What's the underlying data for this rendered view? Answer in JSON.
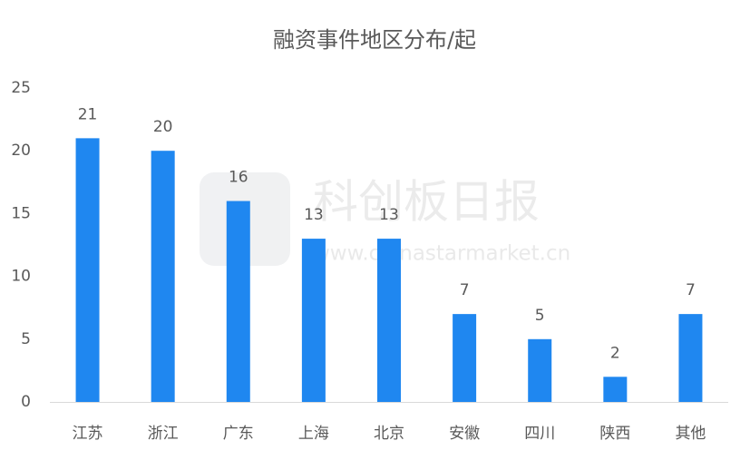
{
  "chart_data": {
    "type": "bar",
    "title": "融资事件地区分布/起",
    "categories": [
      "江苏",
      "浙江",
      "广东",
      "上海",
      "北京",
      "安徽",
      "四川",
      "陕西",
      "其他"
    ],
    "values": [
      21,
      20,
      16,
      13,
      13,
      7,
      5,
      2,
      7
    ],
    "color": "#1f87f0",
    "ylim": [
      0,
      25
    ],
    "yticks": [
      0,
      5,
      10,
      15,
      20,
      25
    ],
    "grid": false,
    "watermark": [
      "科创板日报",
      "www.chinastarmarket.cn"
    ]
  }
}
